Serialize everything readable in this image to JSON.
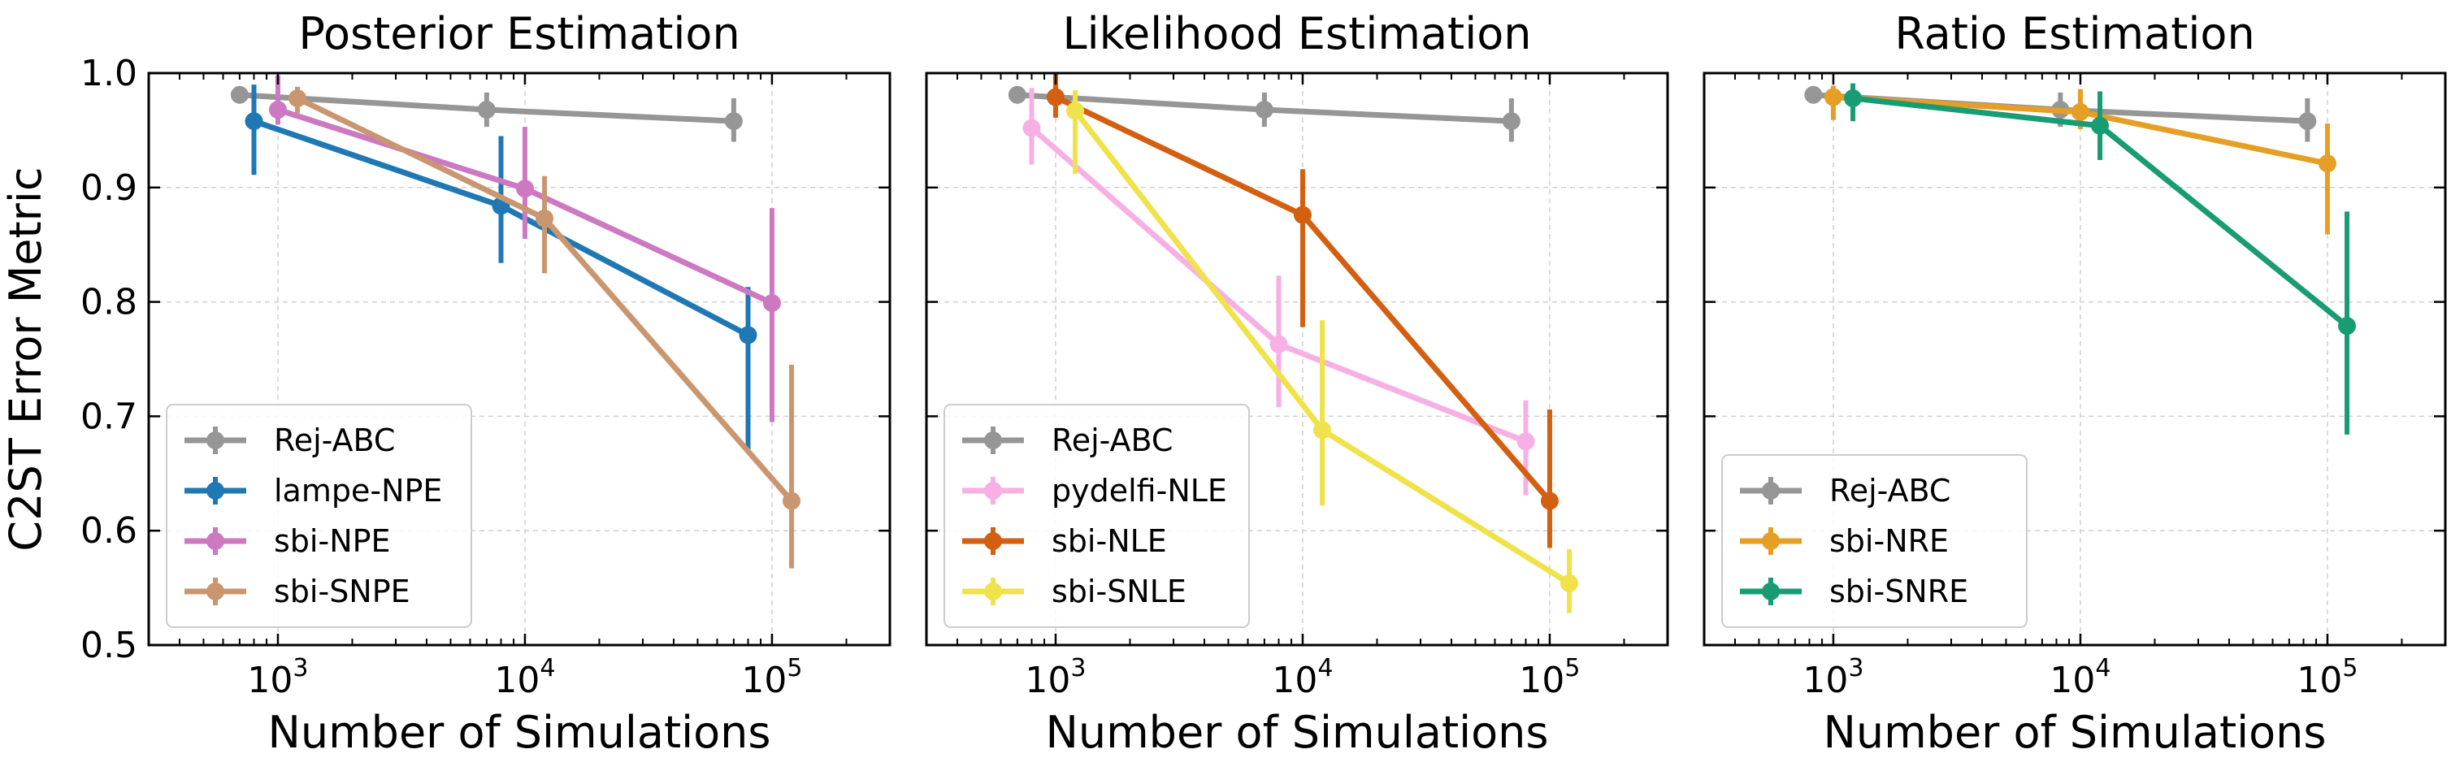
{
  "figure": {
    "ylabel": "C2ST Error Metric",
    "yticks": [
      "0.5",
      "0.6",
      "0.7",
      "0.8",
      "0.9",
      "1.0"
    ],
    "xtick_base": "10",
    "xtick_exponents": [
      "3",
      "4",
      "5"
    ]
  },
  "colors": {
    "rej_abc": "#969696",
    "lampe_npe": "#1f78b4",
    "sbi_npe": "#cc79c1",
    "sbi_snpe": "#c99670",
    "pydelfi_nle": "#f7b0e3",
    "sbi_nle": "#d35f10",
    "sbi_snle": "#efe24a",
    "sbi_nre": "#e69f25",
    "sbi_snre": "#189c74"
  },
  "chart_data": [
    {
      "type": "line",
      "title": "Posterior Estimation",
      "xlabel": "Number of Simulations",
      "ylabel": "C2ST Error Metric",
      "xscale": "log",
      "xlim": [
        300,
        300000
      ],
      "ylim": [
        0.5,
        1.0
      ],
      "grid": true,
      "legend_position": "lower-left",
      "series": [
        {
          "name": "Rej-ABC",
          "color_key": "rej_abc",
          "x": [
            700,
            7000,
            70000
          ],
          "y": [
            0.981,
            0.968,
            0.958
          ],
          "err_low": [
            0.006,
            0.015,
            0.018
          ],
          "err_high": [
            0.006,
            0.015,
            0.02
          ]
        },
        {
          "name": "lampe-NPE",
          "color_key": "lampe_npe",
          "x": [
            800,
            8000,
            80000
          ],
          "y": [
            0.958,
            0.884,
            0.771
          ],
          "err_low": [
            0.047,
            0.05,
            0.1
          ],
          "err_high": [
            0.032,
            0.061,
            0.042
          ]
        },
        {
          "name": "sbi-NPE",
          "color_key": "sbi_npe",
          "x": [
            1000,
            10000,
            100000
          ],
          "y": [
            0.968,
            0.899,
            0.799
          ],
          "err_low": [
            0.013,
            0.044,
            0.104
          ],
          "err_high": [
            0.03,
            0.054,
            0.083
          ]
        },
        {
          "name": "sbi-SNPE",
          "color_key": "sbi_snpe",
          "x": [
            1200,
            12000,
            120000
          ],
          "y": [
            0.978,
            0.873,
            0.626
          ],
          "err_low": [
            0.013,
            0.048,
            0.059
          ],
          "err_high": [
            0.01,
            0.037,
            0.119
          ]
        }
      ]
    },
    {
      "type": "line",
      "title": "Likelihood Estimation",
      "xlabel": "Number of Simulations",
      "ylabel": "",
      "xscale": "log",
      "xlim": [
        300,
        300000
      ],
      "ylim": [
        0.5,
        1.0
      ],
      "grid": true,
      "legend_position": "lower-left",
      "series": [
        {
          "name": "Rej-ABC",
          "color_key": "rej_abc",
          "x": [
            700,
            7000,
            70000
          ],
          "y": [
            0.981,
            0.968,
            0.958
          ],
          "err_low": [
            0.006,
            0.015,
            0.018
          ],
          "err_high": [
            0.006,
            0.015,
            0.02
          ]
        },
        {
          "name": "pydelfi-NLE",
          "color_key": "pydelfi_nle",
          "x": [
            800,
            8000,
            80000
          ],
          "y": [
            0.952,
            0.763,
            0.678
          ],
          "err_low": [
            0.032,
            0.055,
            0.047
          ],
          "err_high": [
            0.035,
            0.06,
            0.036
          ]
        },
        {
          "name": "sbi-NLE",
          "color_key": "sbi_nle",
          "x": [
            1000,
            10000,
            100000
          ],
          "y": [
            0.979,
            0.876,
            0.626
          ],
          "err_low": [
            0.018,
            0.098,
            0.041
          ],
          "err_high": [
            0.02,
            0.04,
            0.08
          ]
        },
        {
          "name": "sbi-SNLE",
          "color_key": "sbi_snle",
          "x": [
            1200,
            12000,
            120000
          ],
          "y": [
            0.967,
            0.688,
            0.554
          ],
          "err_low": [
            0.055,
            0.066,
            0.026
          ],
          "err_high": [
            0.018,
            0.096,
            0.03
          ]
        }
      ]
    },
    {
      "type": "line",
      "title": "Ratio Estimation",
      "xlabel": "Number of Simulations",
      "ylabel": "",
      "xscale": "log",
      "xlim": [
        300,
        300000
      ],
      "ylim": [
        0.5,
        1.0
      ],
      "grid": true,
      "legend_position": "lower-left",
      "series": [
        {
          "name": "Rej-ABC",
          "color_key": "rej_abc",
          "x": [
            830,
            8300,
            83000
          ],
          "y": [
            0.981,
            0.968,
            0.958
          ],
          "err_low": [
            0.006,
            0.015,
            0.018
          ],
          "err_high": [
            0.006,
            0.015,
            0.02
          ]
        },
        {
          "name": "sbi-NRE",
          "color_key": "sbi_nre",
          "x": [
            1000,
            10000,
            100000
          ],
          "y": [
            0.979,
            0.966,
            0.921
          ],
          "err_low": [
            0.02,
            0.015,
            0.062
          ],
          "err_high": [
            0.01,
            0.02,
            0.035
          ]
        },
        {
          "name": "sbi-SNRE",
          "color_key": "sbi_snre",
          "x": [
            1200,
            12000,
            120000
          ],
          "y": [
            0.978,
            0.954,
            0.779
          ],
          "err_low": [
            0.02,
            0.03,
            0.095
          ],
          "err_high": [
            0.013,
            0.03,
            0.1
          ]
        }
      ]
    }
  ]
}
